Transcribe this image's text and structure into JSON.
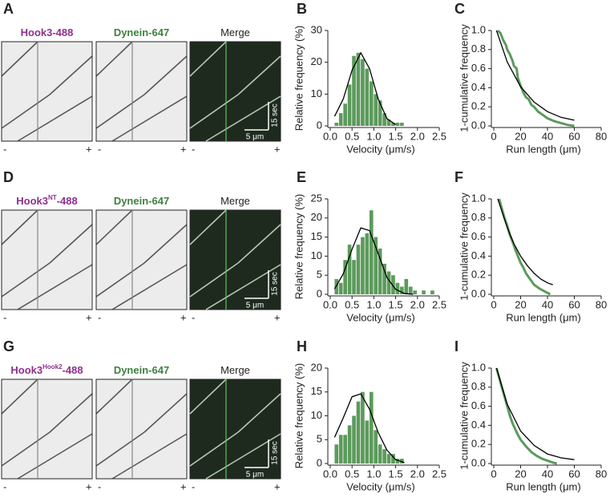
{
  "rows": [
    {
      "label": "A",
      "channels": [
        [
          "Hook3-488"
        ],
        [
          "Dynein-647"
        ],
        [
          "Merge"
        ]
      ],
      "time_scale": "15 sec",
      "length_scale": "5 μm",
      "minus": "-",
      "plus": "+"
    },
    {
      "label": "D",
      "channels": [
        [
          "Hook3",
          "NT",
          "-488"
        ],
        [
          "Dynein-647"
        ],
        [
          "Merge"
        ]
      ],
      "time_scale": "15 sec",
      "length_scale": "5 μm",
      "minus": "-",
      "plus": "+"
    },
    {
      "label": "G",
      "channels": [
        [
          "Hook3",
          "Hook2",
          "-488"
        ],
        [
          "Dynein-647"
        ],
        [
          "Merge"
        ]
      ],
      "time_scale": "15 sec",
      "length_scale": "5 μm",
      "minus": "-",
      "plus": "+"
    }
  ],
  "chart_data": [
    {
      "type": "histogram",
      "label": "B",
      "xlabel": "Velocity (μm/s)",
      "ylabel": "Relative frequency (%)",
      "color": "#5c9a5c",
      "bins": [
        0.1,
        0.2,
        0.3,
        0.4,
        0.5,
        0.6,
        0.7,
        0.8,
        0.9,
        1.0,
        1.1,
        1.2,
        1.3,
        1.4,
        1.5,
        1.6,
        1.7
      ],
      "values": [
        1,
        4,
        7,
        13,
        22,
        23,
        21,
        18,
        14,
        10,
        8,
        4,
        2,
        1,
        1,
        1
      ],
      "fit": {
        "color": "#000000",
        "x": [
          0.1,
          0.3,
          0.5,
          0.7,
          0.9,
          1.1,
          1.3,
          1.5
        ],
        "y": [
          3,
          8.5,
          17.5,
          23,
          18,
          8.5,
          2.3,
          0.4
        ]
      },
      "xlim": [
        0,
        2.5
      ],
      "xticks": [
        {
          "value": 0,
          "label": "0.0"
        },
        {
          "value": 0.5,
          "label": "0.5"
        },
        {
          "value": 1,
          "label": "1.0"
        },
        {
          "value": 1.5,
          "label": "1.5"
        },
        {
          "value": 2,
          "label": "2.0"
        },
        {
          "value": 2.5,
          "label": "2.5"
        }
      ],
      "ylim": [
        0,
        30
      ],
      "yticks": [
        0,
        10,
        20,
        30
      ]
    },
    {
      "type": "line",
      "label": "C",
      "xlabel": "Run length (μm)",
      "ylabel": "1-cumulative frequency",
      "series": [
        {
          "color": "#5c9a5c",
          "x": [
            3,
            5,
            7,
            9,
            10,
            12,
            14,
            15,
            17,
            18,
            20,
            22,
            24,
            26,
            28,
            30,
            33,
            36,
            40,
            45,
            50,
            55,
            60
          ],
          "values": [
            1,
            0.97,
            0.9,
            0.85,
            0.8,
            0.75,
            0.68,
            0.63,
            0.6,
            0.5,
            0.42,
            0.35,
            0.3,
            0.28,
            0.22,
            0.2,
            0.15,
            0.12,
            0.08,
            0.05,
            0.03,
            0.01,
            0
          ]
        },
        {
          "color": "#000000",
          "x": [
            2,
            10,
            20,
            30,
            40,
            50,
            60
          ],
          "values": [
            1,
            0.67,
            0.41,
            0.25,
            0.15,
            0.09,
            0.06
          ]
        }
      ],
      "xlim": [
        0,
        80
      ],
      "xticks": [
        0,
        20,
        40,
        60,
        80
      ],
      "ylim": [
        0,
        1
      ],
      "yticks": [
        {
          "value": 0,
          "label": "0.0"
        },
        {
          "value": 0.2,
          "label": "0.2"
        },
        {
          "value": 0.4,
          "label": "0.4"
        },
        {
          "value": 0.6,
          "label": "0.6"
        },
        {
          "value": 0.8,
          "label": "0.8"
        },
        {
          "value": 1,
          "label": "1.0"
        }
      ]
    },
    {
      "type": "histogram",
      "label": "E",
      "xlabel": "Velocity (μm/s)",
      "ylabel": "Relative frequency (%)",
      "color": "#5c9a5c",
      "bins": [
        0.1,
        0.2,
        0.3,
        0.4,
        0.5,
        0.6,
        0.7,
        0.8,
        0.9,
        1.0,
        1.1,
        1.2,
        1.3,
        1.4,
        1.5,
        1.6,
        1.7,
        1.8,
        1.9,
        2.0,
        2.1,
        2.2,
        2.3,
        2.4
      ],
      "values": [
        4,
        3,
        9,
        13,
        9,
        13,
        15,
        16,
        22,
        15,
        12,
        8,
        6,
        5,
        3,
        2,
        4,
        2,
        1,
        0,
        1,
        0,
        1
      ],
      "fit": {
        "color": "#000000",
        "x": [
          0.1,
          0.3,
          0.5,
          0.7,
          0.9,
          1.1,
          1.3,
          1.5,
          1.7,
          1.9
        ],
        "y": [
          1.4,
          5.4,
          11.8,
          17.4,
          16.7,
          10.7,
          4.4,
          1.3,
          0.2,
          0
        ]
      },
      "xlim": [
        0,
        2.5
      ],
      "xticks": [
        {
          "value": 0,
          "label": "0.0"
        },
        {
          "value": 0.5,
          "label": "0.5"
        },
        {
          "value": 1,
          "label": "1.0"
        },
        {
          "value": 1.5,
          "label": "1.5"
        },
        {
          "value": 2,
          "label": "2.0"
        },
        {
          "value": 2.5,
          "label": "2.5"
        }
      ],
      "ylim": [
        0,
        25
      ],
      "yticks": [
        0,
        5,
        10,
        15,
        20,
        25
      ]
    },
    {
      "type": "line",
      "label": "F",
      "xlabel": "Run length (μm)",
      "ylabel": "1-cumulative frequency",
      "series": [
        {
          "color": "#5c9a5c",
          "x": [
            4,
            6,
            8,
            10,
            12,
            14,
            16,
            18,
            20,
            22,
            24,
            26,
            28,
            30,
            34,
            38,
            42
          ],
          "values": [
            1,
            0.9,
            0.8,
            0.72,
            0.62,
            0.55,
            0.47,
            0.4,
            0.33,
            0.28,
            0.22,
            0.18,
            0.14,
            0.1,
            0.06,
            0.03,
            0
          ]
        },
        {
          "color": "#000000",
          "x": [
            3,
            10,
            15,
            20,
            25,
            30,
            35,
            40,
            44
          ],
          "values": [
            1,
            0.7,
            0.53,
            0.4,
            0.3,
            0.22,
            0.16,
            0.12,
            0.1
          ]
        }
      ],
      "xlim": [
        0,
        80
      ],
      "xticks": [
        0,
        20,
        40,
        60,
        80
      ],
      "ylim": [
        0,
        1
      ],
      "yticks": [
        {
          "value": 0,
          "label": "0.0"
        },
        {
          "value": 0.2,
          "label": "0.2"
        },
        {
          "value": 0.4,
          "label": "0.4"
        },
        {
          "value": 0.6,
          "label": "0.6"
        },
        {
          "value": 0.8,
          "label": "0.8"
        },
        {
          "value": 1,
          "label": "1.0"
        }
      ]
    },
    {
      "type": "histogram",
      "label": "H",
      "xlabel": "Velocity (μm/s)",
      "ylabel": "Relative frequency (%)",
      "color": "#5c9a5c",
      "bins": [
        0.1,
        0.2,
        0.3,
        0.4,
        0.5,
        0.6,
        0.7,
        0.8,
        0.9,
        1.0,
        1.1,
        1.2,
        1.3,
        1.4,
        1.5,
        1.6,
        1.7
      ],
      "values": [
        4,
        6,
        6,
        8,
        10,
        13,
        15,
        9,
        15,
        7,
        4,
        3,
        2,
        2,
        1,
        1
      ],
      "fit": {
        "color": "#000000",
        "x": [
          0.1,
          0.3,
          0.5,
          0.7,
          0.9,
          1.1,
          1.3,
          1.5,
          1.7
        ],
        "y": [
          5.5,
          9.6,
          14,
          14.6,
          11.4,
          6.5,
          2.8,
          0.8,
          0.2
        ]
      },
      "xlim": [
        0,
        2.5
      ],
      "xticks": [
        {
          "value": 0,
          "label": "0.0"
        },
        {
          "value": 0.5,
          "label": "0.5"
        },
        {
          "value": 1,
          "label": "1.0"
        },
        {
          "value": 1.5,
          "label": "1.5"
        },
        {
          "value": 2,
          "label": "2.0"
        },
        {
          "value": 2.5,
          "label": "2.5"
        }
      ],
      "ylim": [
        0,
        20
      ],
      "yticks": [
        0,
        5,
        10,
        15,
        20
      ]
    },
    {
      "type": "line",
      "label": "I",
      "xlabel": "Run length (μm)",
      "ylabel": "1-cumulative frequency",
      "series": [
        {
          "color": "#5c9a5c",
          "x": [
            2,
            4,
            6,
            8,
            10,
            12,
            14,
            16,
            18,
            20,
            24,
            28,
            32,
            36,
            40,
            44,
            47
          ],
          "values": [
            1,
            0.9,
            0.8,
            0.7,
            0.6,
            0.5,
            0.42,
            0.36,
            0.3,
            0.25,
            0.18,
            0.12,
            0.08,
            0.05,
            0.03,
            0.01,
            0
          ]
        },
        {
          "color": "#000000",
          "x": [
            2,
            10,
            20,
            30,
            40,
            50,
            60
          ],
          "values": [
            1,
            0.62,
            0.34,
            0.19,
            0.1,
            0.06,
            0.04
          ]
        }
      ],
      "xlim": [
        0,
        80
      ],
      "xticks": [
        0,
        20,
        40,
        60,
        80
      ],
      "ylim": [
        0,
        1
      ],
      "yticks": [
        {
          "value": 0,
          "label": "0.0"
        },
        {
          "value": 0.2,
          "label": "0.2"
        },
        {
          "value": 0.4,
          "label": "0.4"
        },
        {
          "value": 0.6,
          "label": "0.6"
        },
        {
          "value": 0.8,
          "label": "0.8"
        },
        {
          "value": 1,
          "label": "1.0"
        }
      ]
    }
  ]
}
